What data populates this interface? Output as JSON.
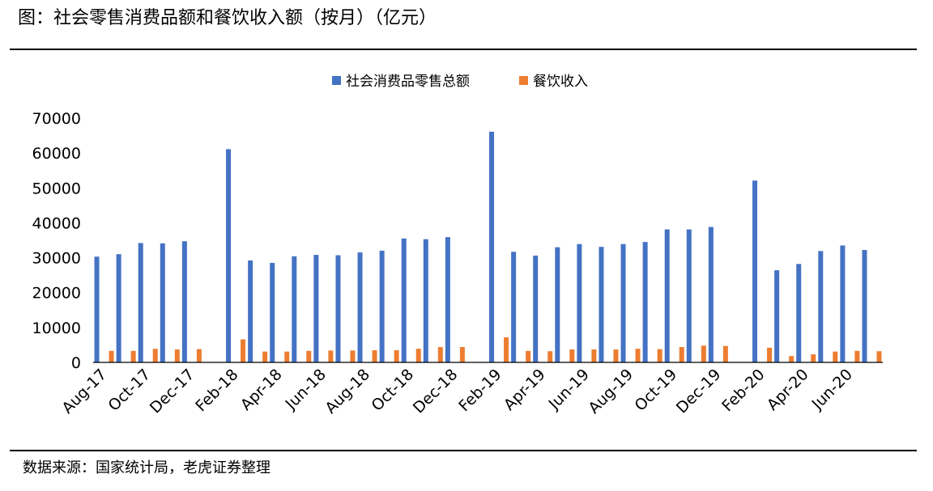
{
  "title": "图：社会零售消费品额和餐饮收入额（按月）（亿元）",
  "source": "数据来源：国家统计局，老虎证券整理",
  "colors": {
    "retail": "#4472C4",
    "catering": "#ED7D31",
    "axis": "#000000",
    "text": "#000000"
  },
  "chart_data": {
    "type": "bar",
    "title": "",
    "xlabel": "",
    "ylabel": "",
    "ylim": [
      0,
      70000
    ],
    "yticks": [
      0,
      10000,
      20000,
      30000,
      40000,
      50000,
      60000,
      70000
    ],
    "grid": false,
    "legend_position": "top-center",
    "categories": [
      "Aug-17",
      "Sep-17",
      "Oct-17",
      "Nov-17",
      "Dec-17",
      "Jan-18",
      "Feb-18",
      "Mar-18",
      "Apr-18",
      "May-18",
      "Jun-18",
      "Jul-18",
      "Aug-18",
      "Sep-18",
      "Oct-18",
      "Nov-18",
      "Dec-18",
      "Jan-19",
      "Feb-19",
      "Mar-19",
      "Apr-19",
      "May-19",
      "Jun-19",
      "Jul-19",
      "Aug-19",
      "Sep-19",
      "Oct-19",
      "Nov-19",
      "Dec-19",
      "Jan-20",
      "Feb-20",
      "Mar-20",
      "Apr-20",
      "May-20",
      "Jun-20",
      "Jul-20"
    ],
    "tick_labels": [
      "Aug-17",
      "Oct-17",
      "Dec-17",
      "Feb-18",
      "Apr-18",
      "Jun-18",
      "Aug-18",
      "Oct-18",
      "Dec-18",
      "Feb-19",
      "Apr-19",
      "Jun-19",
      "Aug-19",
      "Oct-19",
      "Dec-19",
      "Feb-20",
      "Apr-20",
      "Jun-20"
    ],
    "series": [
      {
        "name": "社会消费品零售总额",
        "values": [
          30300,
          31000,
          34200,
          34100,
          34700,
          null,
          61100,
          29200,
          28500,
          30400,
          30800,
          30700,
          31500,
          32000,
          35500,
          35300,
          35900,
          null,
          66100,
          31700,
          30600,
          33000,
          33900,
          33100,
          33900,
          34500,
          38100,
          38100,
          38800,
          null,
          52100,
          26400,
          28200,
          31900,
          33500,
          32200
        ]
      },
      {
        "name": "餐饮收入",
        "values": [
          3300,
          3300,
          3900,
          3700,
          3800,
          null,
          6600,
          3100,
          3100,
          3300,
          3400,
          3400,
          3500,
          3500,
          3900,
          4400,
          4400,
          null,
          7200,
          3300,
          3200,
          3700,
          3700,
          3700,
          3900,
          3800,
          4400,
          4800,
          4700,
          null,
          4200,
          1800,
          2300,
          3100,
          3300,
          3200
        ]
      }
    ]
  }
}
